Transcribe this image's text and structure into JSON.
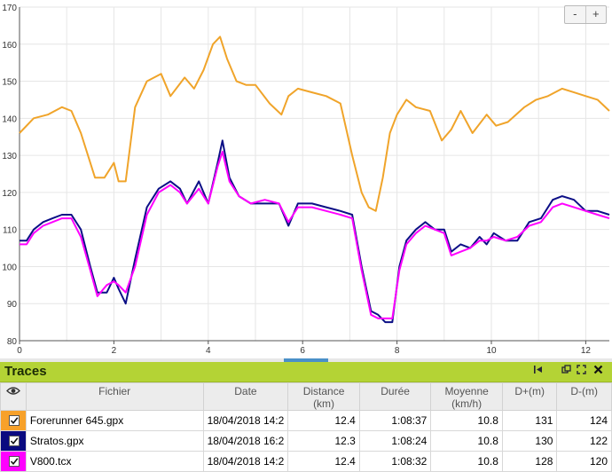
{
  "chart": {
    "x_ticks": [
      "0",
      "2",
      "4",
      "6",
      "8",
      "10",
      "12"
    ],
    "y_ticks": [
      "80",
      "90",
      "100",
      "110",
      "120",
      "130",
      "140",
      "150",
      "160",
      "170"
    ],
    "zoom_out_label": "-",
    "zoom_in_label": "+",
    "colors": {
      "forerunner": "#f0a42a",
      "stratos": "#0c0f86",
      "v800": "#ff00ff",
      "grid": "#e6e6e6"
    }
  },
  "chart_data": {
    "type": "line",
    "xlim": [
      0,
      12.5
    ],
    "ylim": [
      80,
      170
    ],
    "x_ticks": [
      0,
      2,
      4,
      6,
      8,
      10,
      12
    ],
    "y_ticks": [
      80,
      90,
      100,
      110,
      120,
      130,
      140,
      150,
      160,
      170
    ],
    "grid": true,
    "series": [
      {
        "name": "Forerunner 645.gpx",
        "color": "#f0a42a",
        "x": [
          0,
          0.3,
          0.6,
          0.9,
          1.1,
          1.3,
          1.6,
          1.8,
          2.0,
          2.1,
          2.25,
          2.45,
          2.7,
          3.0,
          3.2,
          3.5,
          3.7,
          3.9,
          4.1,
          4.25,
          4.4,
          4.6,
          4.8,
          5.0,
          5.3,
          5.55,
          5.7,
          5.9,
          6.2,
          6.5,
          6.8,
          7.05,
          7.25,
          7.4,
          7.55,
          7.7,
          7.85,
          8.0,
          8.2,
          8.4,
          8.7,
          8.95,
          9.15,
          9.35,
          9.6,
          9.9,
          10.1,
          10.35,
          10.7,
          10.95,
          11.2,
          11.5,
          11.75,
          12.0,
          12.25,
          12.5
        ],
        "y": [
          136,
          140,
          141,
          143,
          142,
          136,
          124,
          124,
          128,
          123,
          123,
          143,
          150,
          152,
          146,
          151,
          148,
          153,
          160,
          162,
          156,
          150,
          149,
          149,
          144,
          141,
          146,
          148,
          147,
          146,
          144,
          130,
          120,
          116,
          115,
          124,
          136,
          141,
          145,
          143,
          142,
          134,
          137,
          142,
          136,
          141,
          138,
          139,
          143,
          145,
          146,
          148,
          147,
          146,
          145,
          142
        ]
      },
      {
        "name": "Stratos.gpx",
        "color": "#0c0f86",
        "x": [
          0,
          0.15,
          0.3,
          0.5,
          0.7,
          0.9,
          1.1,
          1.3,
          1.5,
          1.65,
          1.85,
          2.0,
          2.1,
          2.25,
          2.45,
          2.7,
          2.95,
          3.2,
          3.4,
          3.55,
          3.8,
          4.0,
          4.2,
          4.3,
          4.45,
          4.65,
          4.9,
          5.2,
          5.5,
          5.7,
          5.9,
          6.2,
          6.5,
          6.8,
          7.05,
          7.25,
          7.45,
          7.6,
          7.75,
          7.9,
          8.05,
          8.2,
          8.4,
          8.6,
          8.8,
          9.0,
          9.15,
          9.35,
          9.55,
          9.75,
          9.9,
          10.05,
          10.3,
          10.55,
          10.8,
          11.05,
          11.3,
          11.5,
          11.75,
          12.0,
          12.25,
          12.5
        ],
        "y": [
          107,
          107,
          110,
          112,
          113,
          114,
          114,
          110,
          100,
          93,
          93,
          97,
          94,
          90,
          102,
          116,
          121,
          123,
          121,
          117,
          123,
          117,
          128,
          134,
          124,
          119,
          117,
          117,
          117,
          111,
          117,
          117,
          116,
          115,
          114,
          100,
          88,
          87,
          85,
          85,
          100,
          107,
          110,
          112,
          110,
          110,
          104,
          106,
          105,
          108,
          106,
          109,
          107,
          107,
          112,
          113,
          118,
          119,
          118,
          115,
          115,
          114
        ]
      },
      {
        "name": "V800.tcx",
        "color": "#ff00ff",
        "x": [
          0,
          0.15,
          0.3,
          0.5,
          0.7,
          0.9,
          1.1,
          1.3,
          1.5,
          1.65,
          1.85,
          2.0,
          2.1,
          2.25,
          2.45,
          2.7,
          2.95,
          3.2,
          3.4,
          3.55,
          3.8,
          4.0,
          4.2,
          4.3,
          4.45,
          4.65,
          4.9,
          5.2,
          5.5,
          5.7,
          5.9,
          6.2,
          6.5,
          6.8,
          7.05,
          7.25,
          7.45,
          7.6,
          7.75,
          7.9,
          8.05,
          8.2,
          8.4,
          8.6,
          8.8,
          9.0,
          9.15,
          9.35,
          9.55,
          9.75,
          9.9,
          10.05,
          10.3,
          10.55,
          10.8,
          11.05,
          11.3,
          11.5,
          11.75,
          12.0,
          12.25,
          12.5
        ],
        "y": [
          106,
          106,
          109,
          111,
          112,
          113,
          113,
          108,
          99,
          92,
          95,
          96,
          95,
          93,
          100,
          114,
          120,
          122,
          120,
          117,
          121,
          117,
          127,
          131,
          123,
          119,
          117,
          118,
          117,
          112,
          116,
          116,
          115,
          114,
          113,
          99,
          87,
          86,
          86,
          86,
          99,
          106,
          109,
          111,
          110,
          109,
          103,
          104,
          105,
          107,
          107,
          108,
          107,
          108,
          111,
          112,
          116,
          117,
          116,
          115,
          114,
          113
        ]
      }
    ]
  },
  "panel": {
    "title": "Traces",
    "icons": [
      "first-page-icon",
      "detach-icon",
      "fullscreen-icon",
      "close-icon"
    ],
    "columns": {
      "fichier": "Fichier",
      "date": "Date",
      "distance": "Distance",
      "distance_unit": "(km)",
      "duree": "Durée",
      "moyenne": "Moyenne",
      "moyenne_unit": "(km/h)",
      "dplus": "D+(m)",
      "dminus": "D-(m)"
    },
    "rows": [
      {
        "color": "#f7a12a",
        "fichier": "Forerunner 645.gpx",
        "date": "18/04/2018 14:2",
        "distance": "12.4",
        "duree": "1:08:37",
        "moyenne": "10.8",
        "dplus": "131",
        "dminus": "124"
      },
      {
        "color": "#0a0a80",
        "fichier": "Stratos.gpx",
        "date": "18/04/2018 16:2",
        "distance": "12.3",
        "duree": "1:08:24",
        "moyenne": "10.8",
        "dplus": "130",
        "dminus": "122"
      },
      {
        "color": "#ff00ff",
        "fichier": "V800.tcx",
        "date": "18/04/2018 14:2",
        "distance": "12.4",
        "duree": "1:08:32",
        "moyenne": "10.8",
        "dplus": "128",
        "dminus": "120"
      }
    ]
  }
}
